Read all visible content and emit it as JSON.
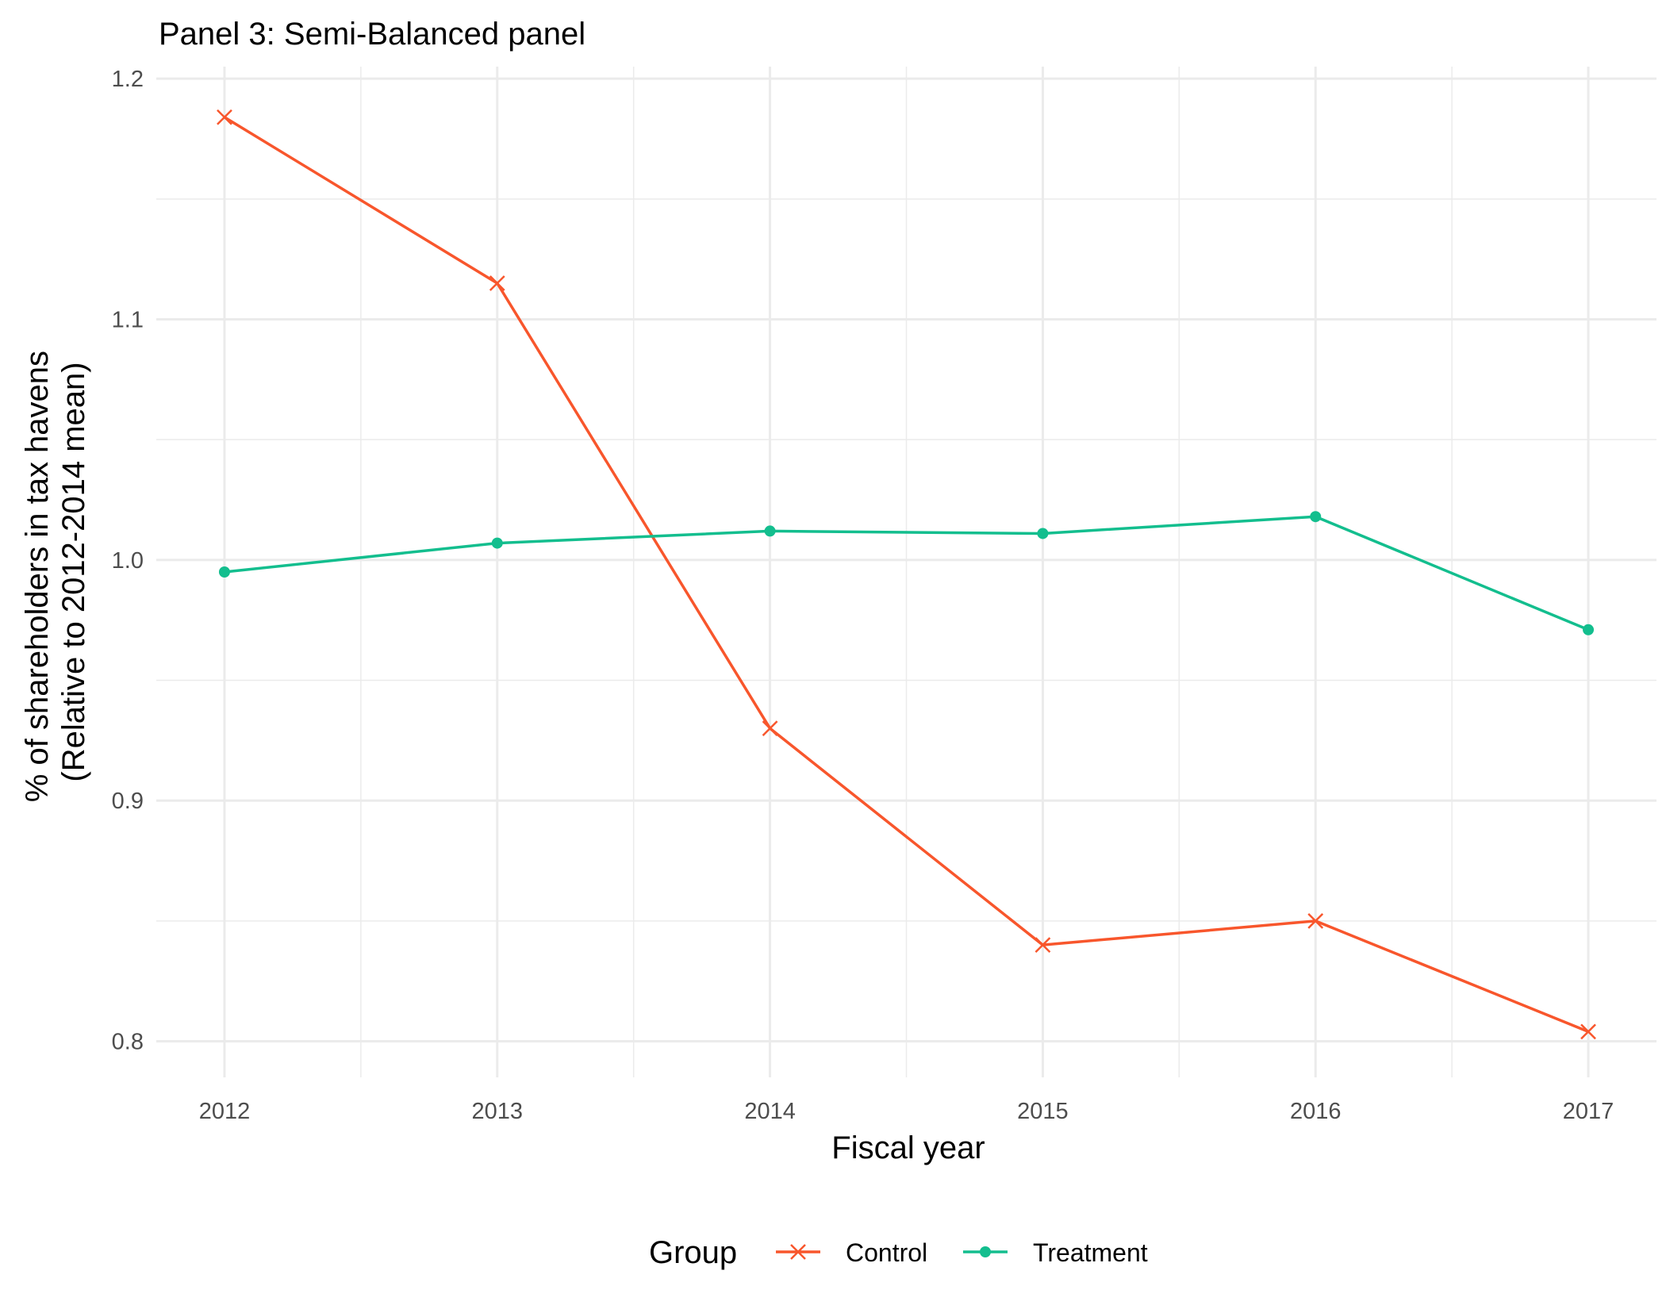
{
  "chart_data": {
    "type": "line",
    "title": "Panel 3: Semi-Balanced panel",
    "xlabel": "Fiscal year",
    "ylabel_lines": [
      "% of shareholders in tax havens",
      "(Relative to 2012-2014 mean)"
    ],
    "x": [
      2012,
      2013,
      2014,
      2015,
      2016,
      2017
    ],
    "xlim": [
      2011.75,
      2017.25
    ],
    "ylim": [
      0.785,
      1.205
    ],
    "yticks": [
      0.8,
      0.9,
      1.0,
      1.1,
      1.2
    ],
    "ytick_labels": [
      "0.8",
      "0.9",
      "1.0",
      "1.1",
      "1.2"
    ],
    "xtick_labels": [
      "2012",
      "2013",
      "2014",
      "2015",
      "2016",
      "2017"
    ],
    "grid": true,
    "legend": {
      "title": "Group",
      "position": "bottom"
    },
    "series": [
      {
        "name": "Control",
        "color": "#F8562C",
        "marker": "x",
        "values": [
          1.184,
          1.115,
          0.93,
          0.84,
          0.85,
          0.804
        ]
      },
      {
        "name": "Treatment",
        "color": "#13BE8E",
        "marker": "circle",
        "values": [
          0.995,
          1.007,
          1.012,
          1.011,
          1.018,
          0.971
        ]
      }
    ]
  }
}
